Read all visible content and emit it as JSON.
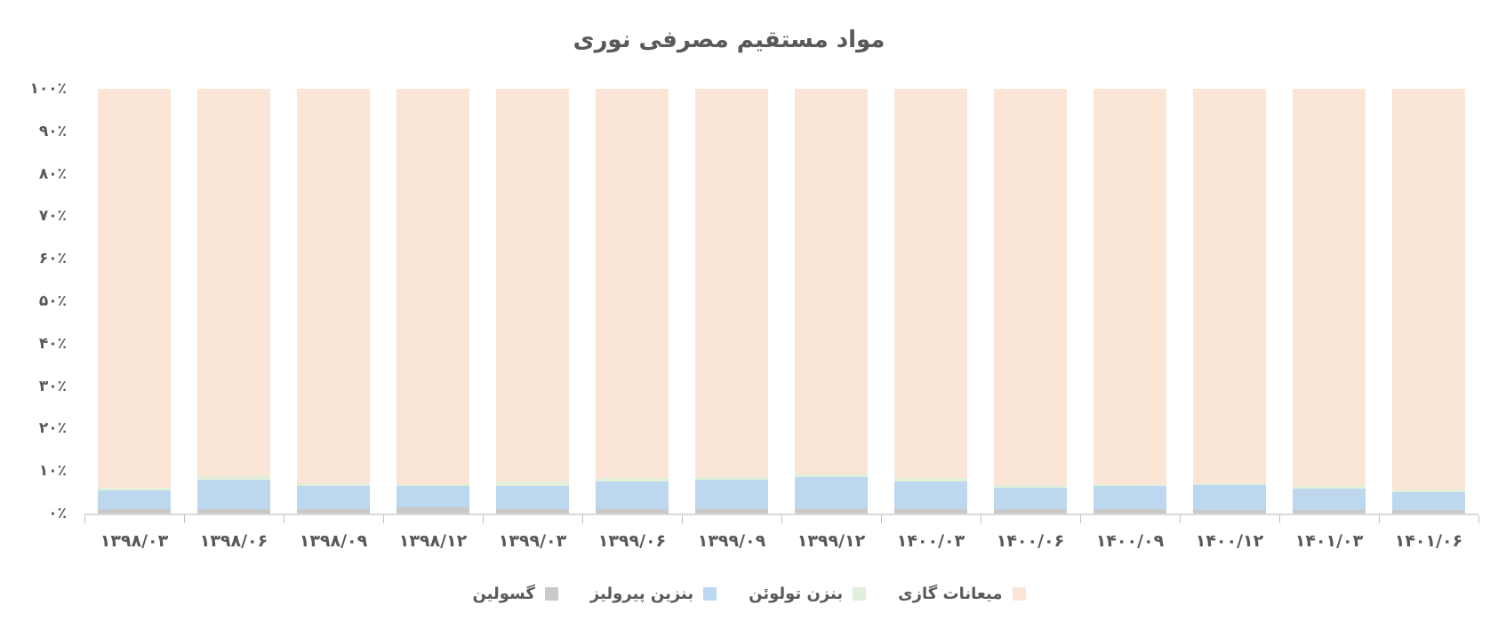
{
  "page": {
    "background": "#ffffff",
    "text_color": "#595959",
    "axis_line_color": "#d9d9d9",
    "tick_color": "#bfbfbf"
  },
  "chart_data": {
    "type": "bar",
    "stacked": true,
    "percent_stacked": true,
    "title": "مواد مستقیم مصرفی نوری",
    "xlabel": "",
    "ylabel": "",
    "ylim": [
      0,
      100
    ],
    "grid": false,
    "legend_position": "bottom",
    "y_ticks": [
      "۱۰۰٪",
      "۹۰٪",
      "۸۰٪",
      "۷۰٪",
      "۶۰٪",
      "۵۰٪",
      "۴۰٪",
      "۳۰٪",
      "۲۰٪",
      "۱۰٪",
      "۰٪"
    ],
    "y_tick_values": [
      100,
      90,
      80,
      70,
      60,
      50,
      40,
      30,
      20,
      10,
      0
    ],
    "categories": [
      "۱۳۹۸/۰۳",
      "۱۳۹۸/۰۶",
      "۱۳۹۸/۰۹",
      "۱۳۹۸/۱۲",
      "۱۳۹۹/۰۳",
      "۱۳۹۹/۰۶",
      "۱۳۹۹/۰۹",
      "۱۳۹۹/۱۲",
      "۱۴۰۰/۰۳",
      "۱۴۰۰/۰۶",
      "۱۴۰۰/۰۹",
      "۱۴۰۰/۱۲",
      "۱۴۰۱/۰۳",
      "۱۴۰۱/۰۶"
    ],
    "series": [
      {
        "name": "گسولین",
        "color": "#c9c9c9",
        "values": [
          1.0,
          1.0,
          1.0,
          1.5,
          1.0,
          1.0,
          1.0,
          1.0,
          1.0,
          1.0,
          1.0,
          0.8,
          0.8,
          0.8
        ]
      },
      {
        "name": "بنزین پیرولیز",
        "color": "#bdd7ee",
        "values": [
          4.5,
          7.0,
          5.5,
          5.0,
          5.5,
          6.5,
          7.0,
          7.5,
          6.5,
          5.0,
          5.5,
          6.0,
          5.0,
          4.3
        ]
      },
      {
        "name": "بنزن تولوئن",
        "color": "#e2efda",
        "values": [
          0.6,
          0.8,
          0.6,
          0.5,
          1.0,
          0.8,
          0.5,
          1.0,
          0.8,
          0.6,
          0.5,
          0.4,
          0.6,
          0.5
        ]
      },
      {
        "name": "میعانات گازی",
        "color": "#fbe5d6",
        "values": [
          93.9,
          91.2,
          92.9,
          93.0,
          92.5,
          91.7,
          91.5,
          90.5,
          91.7,
          93.4,
          93.0,
          92.8,
          93.6,
          94.4
        ]
      }
    ],
    "legend_items": [
      {
        "label": "گسولین",
        "color": "#c9c9c9"
      },
      {
        "label": "بنزین پیرولیز",
        "color": "#bdd7ee"
      },
      {
        "label": "بنزن تولوئن",
        "color": "#e2efda"
      },
      {
        "label": "میعانات گازی",
        "color": "#fbe5d6"
      }
    ]
  }
}
